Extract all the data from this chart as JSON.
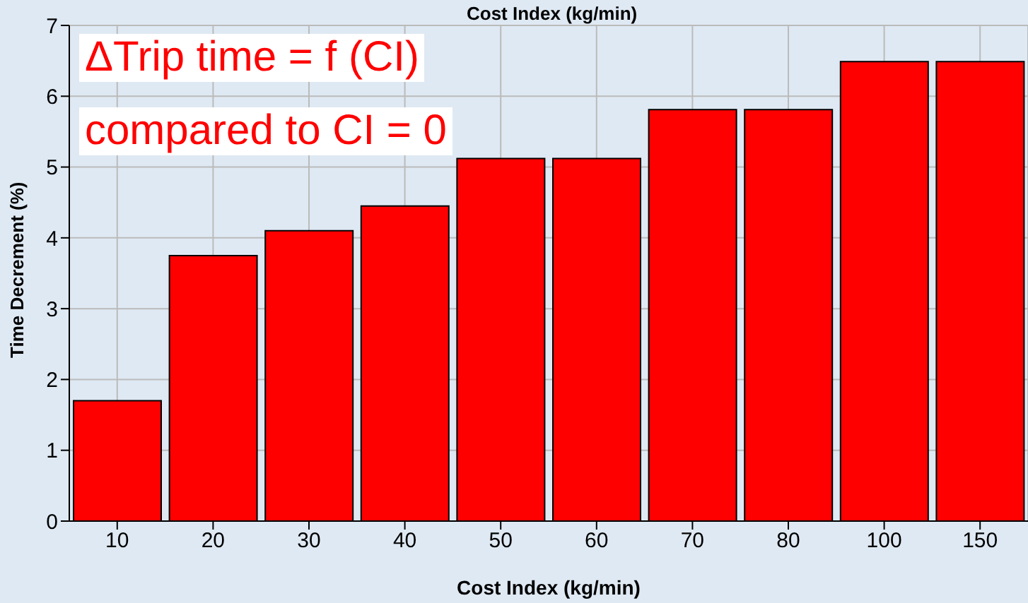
{
  "chart_data": {
    "type": "bar",
    "title": "Cost Index (kg/min)",
    "xlabel": "Cost Index (kg/min)",
    "ylabel": "Time Decrement (%)",
    "annotations": [
      "ΔTrip time = f (CI)",
      "compared to CI = 0"
    ],
    "categories": [
      "10",
      "20",
      "30",
      "40",
      "50",
      "60",
      "70",
      "80",
      "100",
      "150"
    ],
    "values": [
      1.7,
      3.75,
      4.1,
      4.45,
      5.12,
      5.12,
      5.81,
      5.81,
      6.49,
      6.49
    ],
    "color": "#ff0000",
    "ylim": [
      0,
      7
    ],
    "yticks": [
      0,
      1,
      2,
      3,
      4,
      5,
      6,
      7
    ],
    "grid": true
  }
}
